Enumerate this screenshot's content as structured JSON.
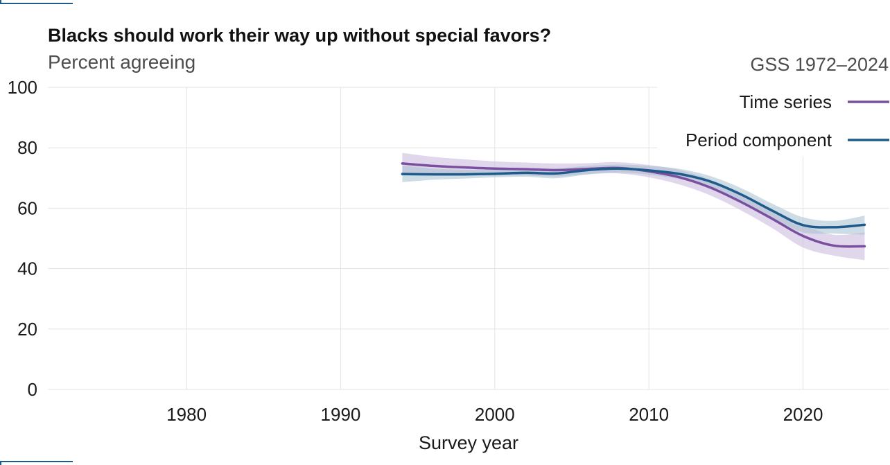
{
  "chart_data": {
    "type": "line",
    "title": "Blacks should work their way up without special favors?",
    "subtitle": "Percent agreeing",
    "source_note": "GSS 1972–2024",
    "xlabel": "Survey year",
    "ylabel": "",
    "xlim": [
      1971,
      2025.6
    ],
    "ylim": [
      0,
      100
    ],
    "x_ticks": [
      1980,
      1990,
      2000,
      2010,
      2020
    ],
    "y_ticks": [
      0,
      20,
      40,
      60,
      80,
      100
    ],
    "grid": true,
    "legend_position": "top-right",
    "series": [
      {
        "name": "Time series",
        "color": "#7b4fa0",
        "band_color": "#c9b6dc",
        "x": [
          1994,
          1996,
          1998,
          2000,
          2002,
          2004,
          2006,
          2008,
          2010,
          2012,
          2014,
          2016,
          2018,
          2020,
          2022,
          2024
        ],
        "values": [
          74.8,
          74,
          73.5,
          73.1,
          72.9,
          72.6,
          73,
          73.3,
          72.2,
          70.2,
          66.8,
          62,
          56.5,
          50.8,
          47.6,
          47.4
        ],
        "lower": [
          71.6,
          71.2,
          71,
          70.8,
          70.8,
          70.5,
          71.2,
          71.5,
          70.2,
          67.8,
          64.2,
          59.2,
          53.4,
          47,
          44.3,
          42.8
        ],
        "upper": [
          78.3,
          77,
          76.2,
          75.5,
          75.1,
          74.8,
          74.9,
          75.2,
          74.3,
          72.6,
          69.4,
          64.8,
          59.6,
          54.6,
          51.2,
          52
        ]
      },
      {
        "name": "Period component",
        "color": "#1f5b8a",
        "band_color": "#a6bfd0",
        "x": [
          1994,
          1996,
          1998,
          2000,
          2002,
          2004,
          2006,
          2008,
          2010,
          2012,
          2014,
          2016,
          2018,
          2020,
          2022,
          2024
        ],
        "values": [
          71.3,
          71.2,
          71.2,
          71.4,
          71.7,
          71.5,
          72.6,
          73.1,
          72.5,
          71.3,
          68.8,
          64.5,
          59.2,
          54.4,
          53.7,
          54.5
        ],
        "lower": [
          68.6,
          69.4,
          69.8,
          70.2,
          70.4,
          69.9,
          71.2,
          71.8,
          71.1,
          69.6,
          67,
          62.4,
          56.8,
          52,
          51.6,
          51.2
        ],
        "upper": [
          74.1,
          73.1,
          72.7,
          72.7,
          73,
          73.1,
          74,
          74.4,
          74,
          73,
          70.6,
          66.6,
          61.5,
          57,
          55.8,
          57.5
        ]
      }
    ]
  }
}
